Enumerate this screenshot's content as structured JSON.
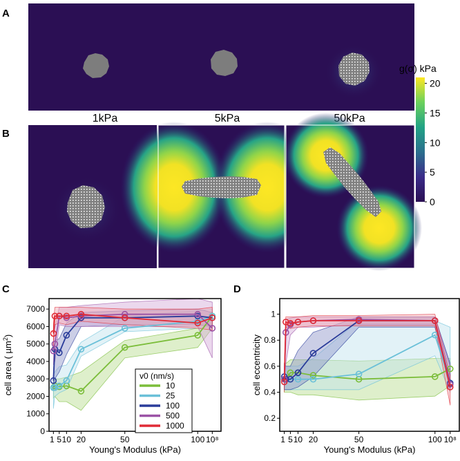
{
  "panels": {
    "A": "A",
    "B": "B",
    "C": "C",
    "D": "D"
  },
  "stiffness_labels": [
    "1kPa",
    "5kPa",
    "50kPa"
  ],
  "colorbar": {
    "title": "g(σ) kPa",
    "ticks": [
      0,
      5,
      10,
      15,
      20
    ],
    "colors": [
      "#2b0f54",
      "#3a2e8a",
      "#2c6f8e",
      "#23a387",
      "#6bd15c",
      "#fde724"
    ]
  },
  "chart_data": [
    {
      "panel": "C",
      "type": "line",
      "xlabel": "Young's Modulus (kPa)",
      "ylabel": "cell area ( µm²)",
      "ylabel_parts": [
        "cell area ( µm",
        "2",
        ")"
      ],
      "xticks": [
        "1",
        "5",
        "10",
        "20",
        "50",
        "100",
        "10⁸"
      ],
      "xtick_positions": [
        1,
        5,
        10,
        20,
        50,
        100,
        110
      ],
      "yticks": [
        0,
        1000,
        2000,
        3000,
        4000,
        5000,
        6000,
        7000
      ],
      "ylim": [
        0,
        7600
      ],
      "xlim": [
        -2,
        116
      ],
      "x": [
        1,
        2,
        5,
        10,
        20,
        50,
        100,
        110
      ],
      "legend": {
        "title": "v0 (nm/s)",
        "position": "inside-bottom-right"
      },
      "series": [
        {
          "name": "10",
          "color": "#7bbd3a",
          "fill": "#b5dc8c",
          "values": [
            2500,
            2600,
            2550,
            2600,
            2300,
            4800,
            5500,
            6600
          ],
          "upper": [
            3000,
            3000,
            3000,
            3100,
            3400,
            5200,
            5900,
            6800
          ],
          "lower": [
            1900,
            2000,
            1700,
            1700,
            1200,
            4200,
            4800,
            5900
          ]
        },
        {
          "name": "25",
          "color": "#6ac0d8",
          "fill": "#bfe2ee",
          "values": [
            2500,
            2500,
            2600,
            2900,
            4700,
            5900,
            6300,
            6600
          ],
          "upper": [
            3200,
            3400,
            3700,
            3800,
            5100,
            6600,
            6900,
            7000
          ],
          "lower": [
            1300,
            2000,
            2200,
            2400,
            4300,
            5700,
            5900,
            6000
          ]
        },
        {
          "name": "100",
          "color": "#2a3c9a",
          "fill": "#8b93c8",
          "values": [
            2900,
            4700,
            4500,
            5500,
            6500,
            6500,
            6600,
            6500
          ],
          "upper": [
            3400,
            5200,
            5300,
            6200,
            6800,
            6900,
            7000,
            6800
          ],
          "lower": [
            2400,
            3000,
            3400,
            4400,
            6000,
            6100,
            6100,
            6000
          ]
        },
        {
          "name": "500",
          "color": "#9b53a6",
          "fill": "#d2a8d8",
          "values": [
            4600,
            5000,
            6600,
            6500,
            6600,
            6700,
            6700,
            5900
          ],
          "upper": [
            5200,
            5900,
            7100,
            7100,
            7200,
            7400,
            7600,
            7400
          ],
          "lower": [
            3800,
            4000,
            6100,
            6000,
            6000,
            6000,
            6000,
            4200
          ]
        },
        {
          "name": "1000",
          "color": "#e02b36",
          "fill": "#f0a3ae",
          "values": [
            5600,
            6600,
            6600,
            6600,
            6700,
            6500,
            6200,
            6500
          ],
          "upper": [
            6200,
            7100,
            7100,
            7100,
            7100,
            7000,
            7000,
            7100
          ],
          "lower": [
            4900,
            6100,
            6200,
            6100,
            6300,
            6100,
            5900,
            5800
          ]
        }
      ]
    },
    {
      "panel": "D",
      "type": "line",
      "xlabel": "Young's Modulus (kPa)",
      "ylabel": "cell eccentricity",
      "xticks": [
        "1",
        "5",
        "10",
        "20",
        "50",
        "100",
        "10⁸"
      ],
      "xtick_positions": [
        1,
        5,
        10,
        20,
        50,
        100,
        110
      ],
      "yticks": [
        0.2,
        0.4,
        0.6,
        0.8,
        1
      ],
      "ylim": [
        0.1,
        1.12
      ],
      "xlim": [
        -2,
        116
      ],
      "x": [
        1,
        2,
        5,
        10,
        20,
        50,
        100,
        110
      ],
      "series": [
        {
          "name": "10",
          "color": "#7bbd3a",
          "fill": "#b5dc8c",
          "values": [
            0.5,
            0.5,
            0.55,
            0.55,
            0.53,
            0.5,
            0.52,
            0.58
          ],
          "upper": [
            0.62,
            0.62,
            0.65,
            0.65,
            0.65,
            0.64,
            0.66,
            0.66
          ],
          "lower": [
            0.4,
            0.4,
            0.4,
            0.38,
            0.38,
            0.34,
            0.37,
            0.45
          ]
        },
        {
          "name": "25",
          "color": "#6ac0d8",
          "fill": "#bfe2ee",
          "values": [
            0.5,
            0.5,
            0.5,
            0.5,
            0.5,
            0.54,
            0.84,
            0.47
          ],
          "upper": [
            0.6,
            0.6,
            0.6,
            0.6,
            0.66,
            0.95,
            0.95,
            0.9
          ],
          "lower": [
            0.42,
            0.42,
            0.42,
            0.42,
            0.42,
            0.42,
            0.68,
            0.4
          ]
        },
        {
          "name": "100",
          "color": "#2a3c9a",
          "fill": "#8b93c8",
          "values": [
            0.52,
            0.5,
            0.5,
            0.55,
            0.7,
            0.95,
            0.95,
            0.47
          ],
          "upper": [
            0.62,
            0.6,
            0.6,
            0.72,
            0.86,
            0.98,
            0.98,
            0.62
          ],
          "lower": [
            0.42,
            0.42,
            0.42,
            0.44,
            0.52,
            0.9,
            0.9,
            0.42
          ]
        },
        {
          "name": "500",
          "color": "#9b53a6",
          "fill": "#d2a8d8",
          "values": [
            0.5,
            0.86,
            0.92,
            0.94,
            0.95,
            0.96,
            0.95,
            0.46
          ],
          "upper": [
            0.56,
            0.96,
            0.97,
            0.98,
            0.98,
            0.98,
            0.98,
            0.6
          ],
          "lower": [
            0.44,
            0.62,
            0.84,
            0.9,
            0.9,
            0.92,
            0.92,
            0.42
          ]
        },
        {
          "name": "1000",
          "color": "#e02b36",
          "fill": "#f0a3ae",
          "values": [
            0.48,
            0.94,
            0.93,
            0.94,
            0.95,
            0.95,
            0.95,
            0.44
          ],
          "upper": [
            0.56,
            0.98,
            0.98,
            0.98,
            0.99,
            0.99,
            1.0,
            0.52
          ],
          "lower": [
            0.4,
            0.9,
            0.89,
            0.9,
            0.91,
            0.91,
            0.91,
            0.3
          ]
        }
      ]
    }
  ]
}
